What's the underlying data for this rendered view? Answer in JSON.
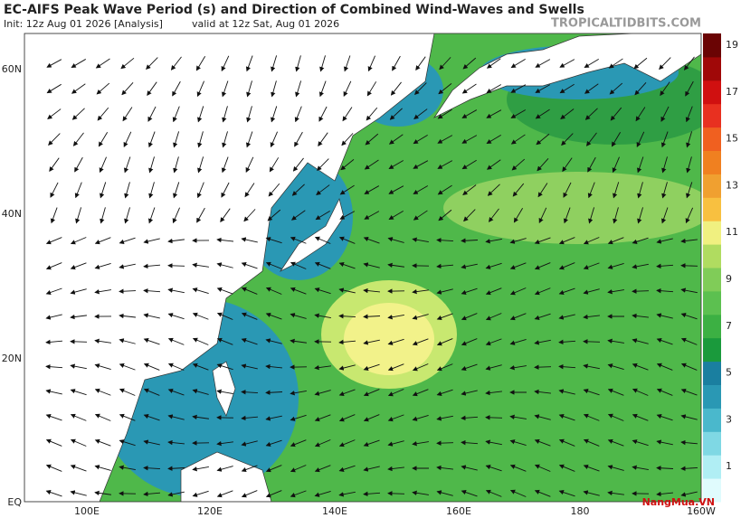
{
  "header": {
    "title": "EC-AIFS Peak Wave Period (s) and Direction of Combined Wind-Waves and Swells",
    "init": "Init: 12z Aug 01 2026   [Analysis]",
    "valid": "valid at 12z Sat, Aug 01 2026",
    "source": "TROPICALTIDBITS.COM"
  },
  "map": {
    "lat_labels": [
      "60N",
      "40N",
      "20N",
      "EQ"
    ],
    "lon_labels": [
      "100E",
      "120E",
      "140E",
      "160E",
      "180",
      "160W"
    ]
  },
  "colorbar": {
    "labels": [
      "19",
      "17",
      "15",
      "13",
      "11",
      "9",
      "7",
      "5",
      "3",
      "1"
    ]
  },
  "watermark": "NangMua.VN"
}
